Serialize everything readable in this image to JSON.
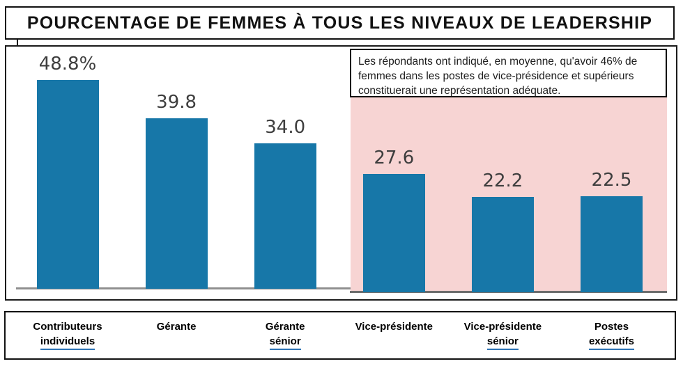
{
  "page": {
    "header_title": "POURCENTAGE DE FEMMES À TOUS LES NIVEAUX DE LEADERSHIP"
  },
  "chart_data": {
    "type": "bar",
    "title": "POURCENTAGE DE FEMMES À TOUS LES NIVEAUX DE LEADERSHIP",
    "categories": [
      "Contributeurs individuels",
      "Gérante",
      "Gérante sénior",
      "Vice-présidente",
      "Vice-présidente sénior",
      "Postes exécutifs"
    ],
    "category_lines": [
      [
        "Contributeurs",
        "individuels"
      ],
      [
        "Gérante"
      ],
      [
        "Gérante",
        "sénior"
      ],
      [
        "Vice-présidente"
      ],
      [
        "Vice-présidente",
        "sénior"
      ],
      [
        "Postes",
        "exécutifs"
      ]
    ],
    "values": [
      48.8,
      39.8,
      34.0,
      27.6,
      22.2,
      22.5
    ],
    "value_labels": [
      "48.8%",
      "39.8",
      "34.0",
      "27.6",
      "22.2",
      "22.5"
    ],
    "highlighted": [
      false,
      false,
      false,
      true,
      true,
      true
    ],
    "annotation": "Les répondants ont indiqué, en moyenne, qu'avoir 46% de femmes dans les postes de vice-présidence et supérieurs constituerait une représentation adéquate.",
    "xlabel": "",
    "ylabel": "",
    "ylim": [
      0,
      55
    ],
    "grid": false,
    "legend": "none",
    "colors": {
      "bar": "#1777a8",
      "highlight_bg": "#f7d4d3",
      "value_label": "#3e3e3e",
      "underline": "#2e74b5",
      "axis_line_left": "#8f8f8f",
      "axis_line_right": "#6d6d6d"
    }
  }
}
